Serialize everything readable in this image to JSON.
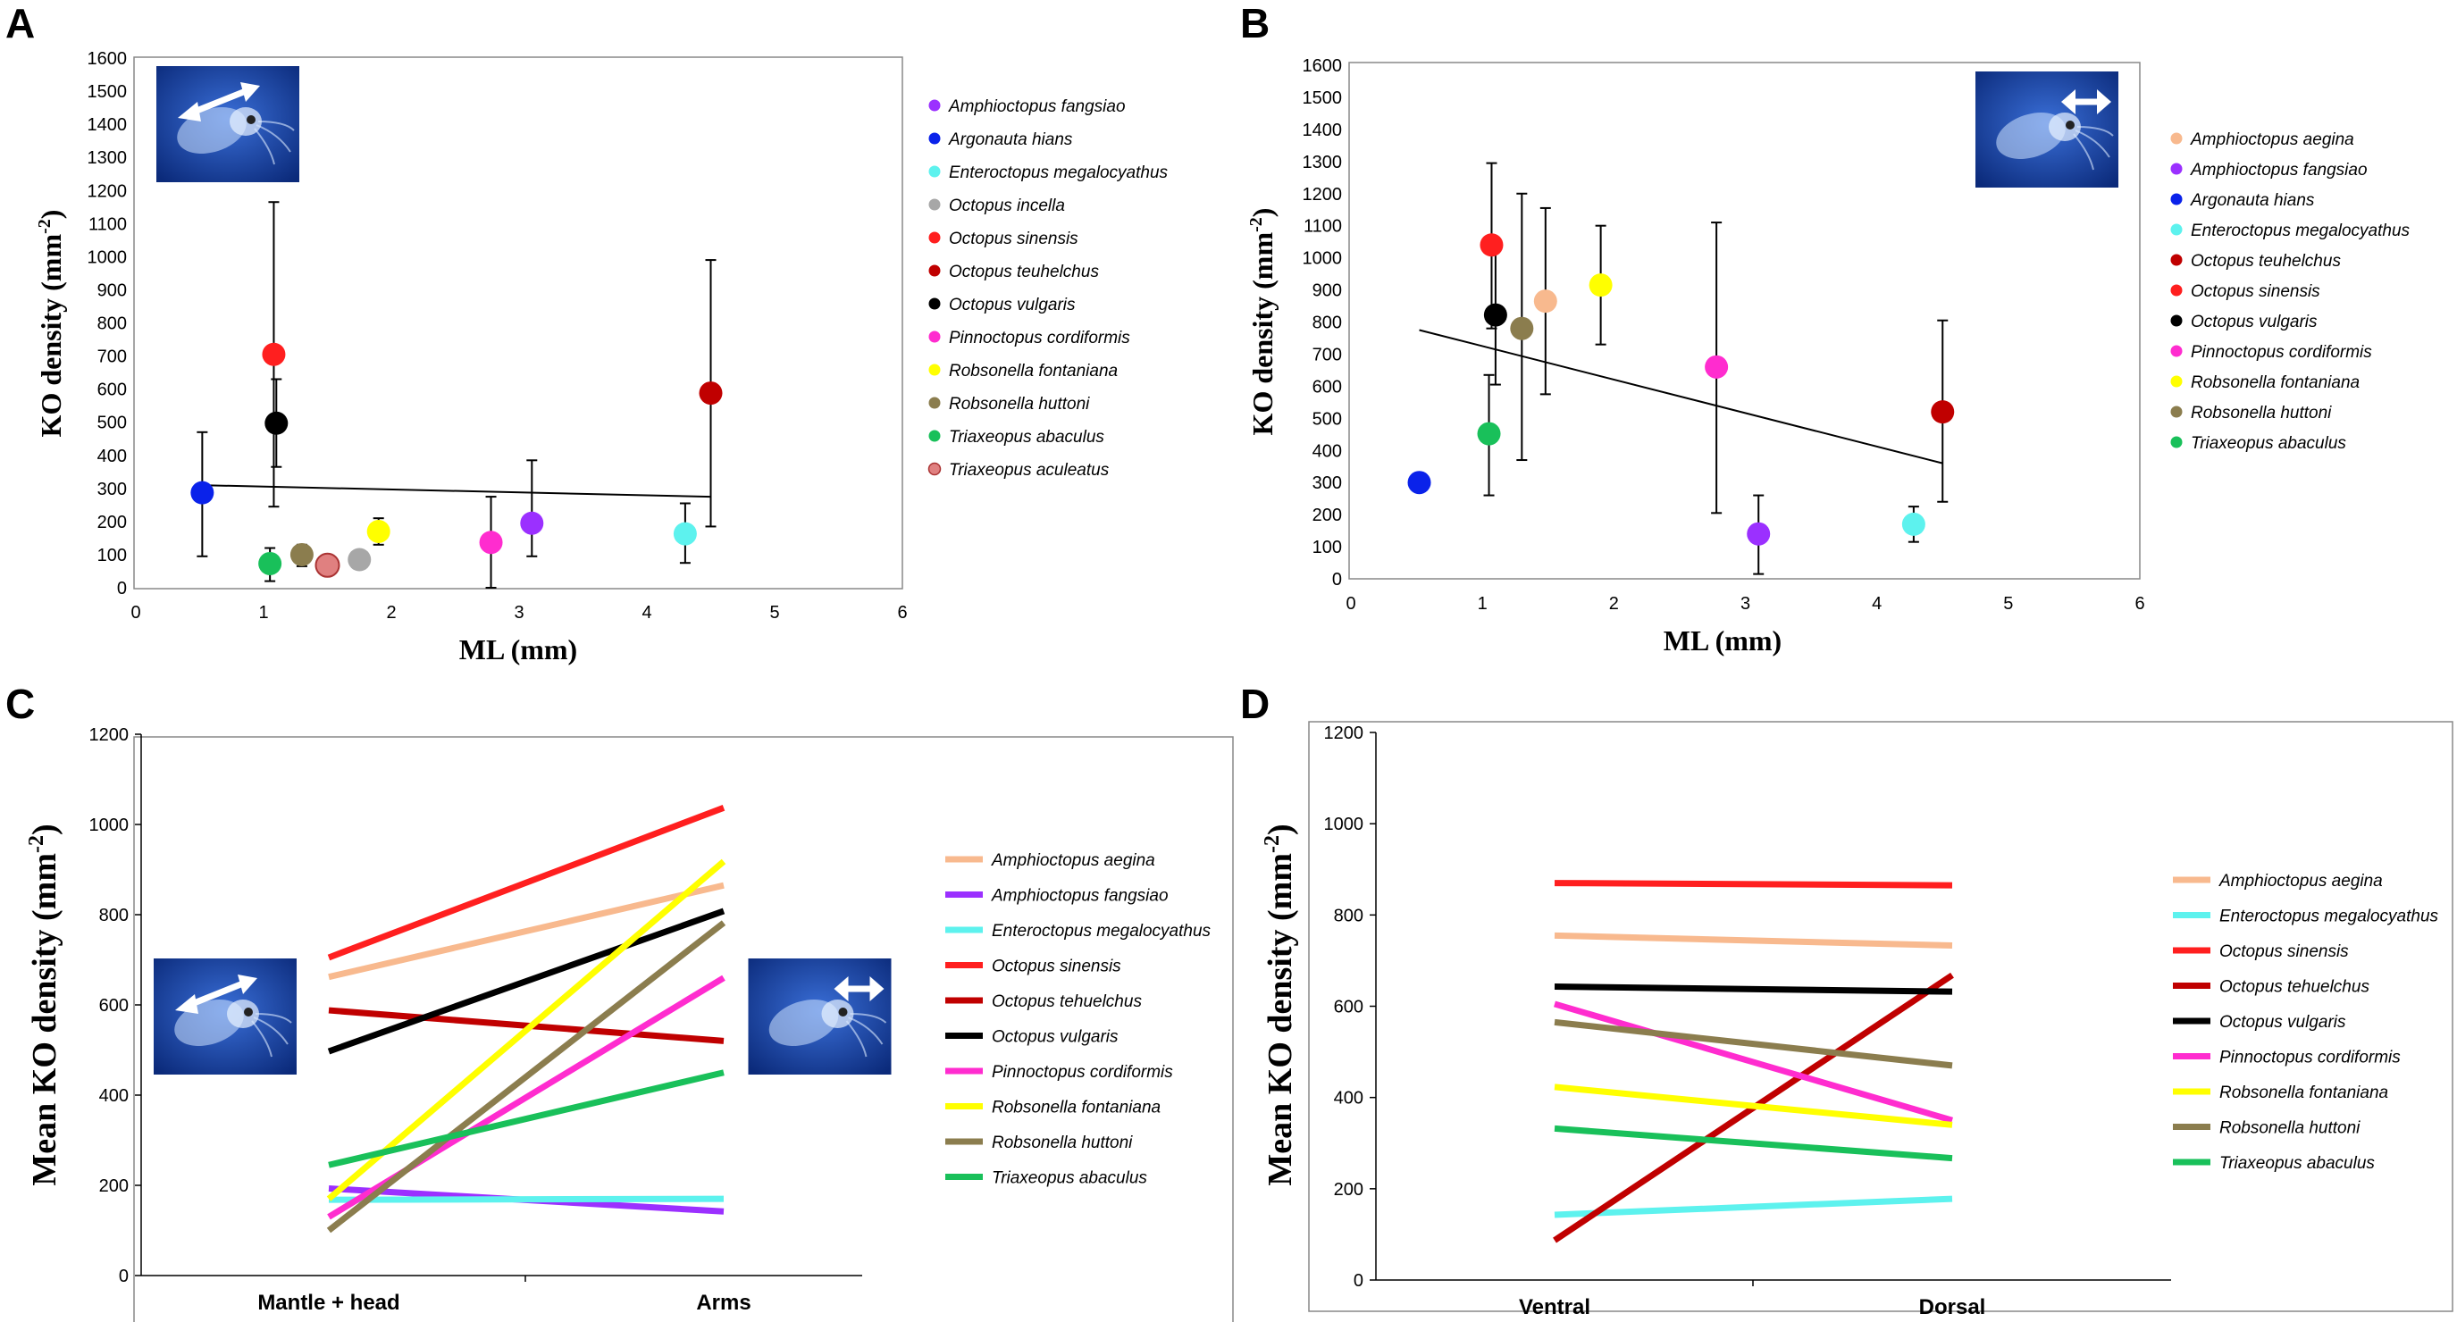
{
  "chart_data": [
    {
      "panel": "A",
      "type": "scatter",
      "xlabel": "ML (mm)",
      "ylabel": "KO density (mm",
      "ylabel_sup": "-2",
      "ylabel_end": ")",
      "xlim": [
        0,
        6
      ],
      "ylim": [
        0,
        1600
      ],
      "x_ticks": [
        "0",
        "1",
        "2",
        "3",
        "4",
        "5",
        "6"
      ],
      "y_ticks": [
        "0",
        "100",
        "200",
        "300",
        "400",
        "500",
        "600",
        "700",
        "800",
        "900",
        "1000",
        "1100",
        "1200",
        "1300",
        "1400",
        "1500",
        "1600"
      ],
      "trend": {
        "x": [
          0.5,
          4.5
        ],
        "y": [
          310,
          275
        ]
      },
      "points": [
        {
          "name": "Amphioctopus fangsiao",
          "color": "#9b30ff",
          "x": 3.1,
          "y": 195,
          "err_low": 95,
          "err_high": 385
        },
        {
          "name": "Argonauta hians",
          "color": "#0a22ea",
          "x": 0.52,
          "y": 287,
          "err_low": 95,
          "err_high": 470
        },
        {
          "name": "Enteroctopus megalocyathus",
          "color": "#5df2ee",
          "x": 4.3,
          "y": 163,
          "err_low": 75,
          "err_high": 255
        },
        {
          "name": "Octopus incella",
          "color": "#a7a7a7",
          "x": 1.75,
          "y": 85
        },
        {
          "name": "Octopus sinensis",
          "color": "#ff1f1f",
          "x": 1.08,
          "y": 705,
          "err_low": 245,
          "err_high": 1165
        },
        {
          "name": "Octopus teuhelchus",
          "color": "#c00000",
          "x": 4.5,
          "y": 588,
          "err_low": 185,
          "err_high": 990
        },
        {
          "name": "Octopus vulgaris",
          "color": "#000000",
          "x": 1.1,
          "y": 497,
          "err_low": 365,
          "err_high": 630
        },
        {
          "name": "Pinnoctopus cordiformis",
          "color": "#ff2ccf",
          "x": 2.78,
          "y": 137,
          "err_low": 0,
          "err_high": 275
        },
        {
          "name": "Robsonella fontaniana",
          "color": "#ffff00",
          "x": 1.9,
          "y": 170,
          "err_low": 130,
          "err_high": 210
        },
        {
          "name": "Robsonella huttoni",
          "color": "#8b7d4e",
          "x": 1.3,
          "y": 100,
          "err_low": 65,
          "err_high": 130
        },
        {
          "name": "Triaxeopus abaculus",
          "color": "#19c05a",
          "x": 1.05,
          "y": 73,
          "err_low": 20,
          "err_high": 120
        },
        {
          "name": "Triaxeopus aculeatus",
          "color": "#e08080",
          "x": 1.5,
          "y": 68
        }
      ]
    },
    {
      "panel": "B",
      "type": "scatter",
      "xlabel": "ML (mm)",
      "ylabel": "KO density (mm",
      "ylabel_sup": "-2",
      "ylabel_end": ")",
      "xlim": [
        0,
        6
      ],
      "ylim": [
        0,
        1600
      ],
      "x_ticks": [
        "0",
        "1",
        "2",
        "3",
        "4",
        "5",
        "6"
      ],
      "y_ticks": [
        "0",
        "100",
        "200",
        "300",
        "400",
        "500",
        "600",
        "700",
        "800",
        "900",
        "1000",
        "1100",
        "1200",
        "1300",
        "1400",
        "1500",
        "1600"
      ],
      "trend": {
        "x": [
          0.52,
          4.5
        ],
        "y": [
          775,
          360
        ]
      },
      "points": [
        {
          "name": "Amphioctopus aegina",
          "color": "#f8b98e",
          "x": 1.48,
          "y": 865,
          "err_low": 575,
          "err_high": 1155
        },
        {
          "name": "Amphioctopus fangsiao",
          "color": "#9b30ff",
          "x": 3.1,
          "y": 140,
          "err_low": 15,
          "err_high": 260
        },
        {
          "name": "Argonauta hians",
          "color": "#0a22ea",
          "x": 0.52,
          "y": 300
        },
        {
          "name": "Enteroctopus megalocyathus",
          "color": "#5df2ee",
          "x": 4.28,
          "y": 170,
          "err_low": 115,
          "err_high": 225
        },
        {
          "name": "Octopus teuhelchus",
          "color": "#c00000",
          "x": 4.5,
          "y": 520,
          "err_low": 240,
          "err_high": 805
        },
        {
          "name": "Octopus sinensis",
          "color": "#ff1f1f",
          "x": 1.07,
          "y": 1040,
          "err_low": 780,
          "err_high": 1295
        },
        {
          "name": "Octopus vulgaris",
          "color": "#000000",
          "x": 1.1,
          "y": 822,
          "err_low": 605,
          "err_high": 1040
        },
        {
          "name": "Pinnoctopus cordiformis",
          "color": "#ff2ccf",
          "x": 2.78,
          "y": 660,
          "err_low": 205,
          "err_high": 1110
        },
        {
          "name": "Robsonella fontaniana",
          "color": "#ffff00",
          "x": 1.9,
          "y": 915,
          "err_low": 730,
          "err_high": 1100
        },
        {
          "name": "Robsonella huttoni",
          "color": "#8b7d4e",
          "x": 1.3,
          "y": 780,
          "err_low": 370,
          "err_high": 1200
        },
        {
          "name": "Triaxeopus abaculus",
          "color": "#19c05a",
          "x": 1.05,
          "y": 452,
          "err_low": 260,
          "err_high": 635
        }
      ]
    },
    {
      "panel": "C",
      "type": "line",
      "categories": [
        "Mantle + head",
        "Arms"
      ],
      "ylabel": "Mean KO density (mm",
      "ylabel_sup": "-2",
      "ylabel_end": ")",
      "ylim": [
        0,
        1200
      ],
      "y_ticks": [
        "0",
        "200",
        "400",
        "600",
        "800",
        "1000",
        "1200"
      ],
      "series": [
        {
          "name": "Amphioctopus aegina",
          "color": "#f8b98e",
          "values": [
            662,
            865
          ]
        },
        {
          "name": "Amphioctopus fangsiao",
          "color": "#9b30ff",
          "values": [
            193,
            142
          ]
        },
        {
          "name": "Enteroctopus megalocyathus",
          "color": "#5df2ee",
          "values": [
            168,
            170
          ]
        },
        {
          "name": "Octopus sinensis",
          "color": "#ff1f1f",
          "values": [
            705,
            1037
          ]
        },
        {
          "name": "Octopus tehuelchus",
          "color": "#c00000",
          "values": [
            588,
            520
          ]
        },
        {
          "name": "Octopus vulgaris",
          "color": "#000000",
          "values": [
            497,
            808
          ]
        },
        {
          "name": "Pinnoctopus cordiformis",
          "color": "#ff2ccf",
          "values": [
            130,
            660
          ]
        },
        {
          "name": "Robsonella fontaniana",
          "color": "#ffff00",
          "values": [
            170,
            918
          ]
        },
        {
          "name": "Robsonella huttoni",
          "color": "#8b7d4e",
          "values": [
            100,
            782
          ]
        },
        {
          "name": "Triaxeopus abaculus",
          "color": "#19c05a",
          "values": [
            245,
            450
          ]
        }
      ]
    },
    {
      "panel": "D",
      "type": "line",
      "categories": [
        "Ventral",
        "Dorsal"
      ],
      "ylabel": "Mean KO density (mm",
      "ylabel_sup": "-2",
      "ylabel_end": ")",
      "ylim": [
        0,
        1200
      ],
      "y_ticks": [
        "0",
        "200",
        "400",
        "600",
        "800",
        "1000",
        "1200"
      ],
      "series": [
        {
          "name": "Amphioctopus aegina",
          "color": "#f8b98e",
          "values": [
            755,
            733
          ]
        },
        {
          "name": "Enteroctopus megalocyathus",
          "color": "#5df2ee",
          "values": [
            143,
            178
          ]
        },
        {
          "name": "Octopus sinensis",
          "color": "#ff1f1f",
          "values": [
            870,
            865
          ]
        },
        {
          "name": "Octopus tehuelchus",
          "color": "#c00000",
          "values": [
            87,
            668
          ]
        },
        {
          "name": "Octopus vulgaris",
          "color": "#000000",
          "values": [
            643,
            632
          ]
        },
        {
          "name": "Pinnoctopus cordiformis",
          "color": "#ff2ccf",
          "values": [
            605,
            350
          ]
        },
        {
          "name": "Robsonella fontaniana",
          "color": "#ffff00",
          "values": [
            423,
            340
          ]
        },
        {
          "name": "Robsonella huttoni",
          "color": "#8b7d4e",
          "values": [
            565,
            470
          ]
        },
        {
          "name": "Triaxeopus abaculus",
          "color": "#19c05a",
          "values": [
            332,
            267
          ]
        }
      ]
    }
  ]
}
